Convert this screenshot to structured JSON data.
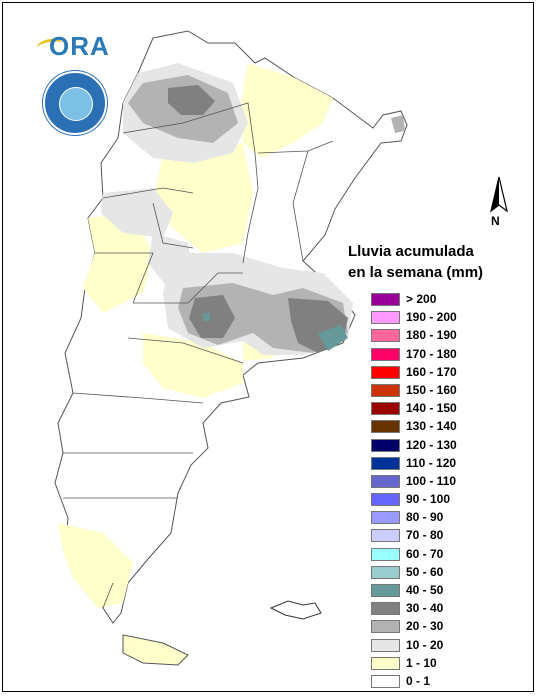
{
  "map": {
    "logo_text": "ORA",
    "seal_icon": "smn-seal-icon",
    "north_label": "N",
    "legend_title_line1": "Lluvia acumulada",
    "legend_title_line2": "en la semana (mm)",
    "legend": [
      {
        "label": "> 200",
        "color": "#990099"
      },
      {
        "label": "190 - 200",
        "color": "#ff99ff"
      },
      {
        "label": "180 - 190",
        "color": "#ff6699"
      },
      {
        "label": "170 - 180",
        "color": "#ff0066"
      },
      {
        "label": "160 - 170",
        "color": "#ff0000"
      },
      {
        "label": "150 - 160",
        "color": "#cc3300"
      },
      {
        "label": "140 - 150",
        "color": "#990000"
      },
      {
        "label": "130 - 140",
        "color": "#663300"
      },
      {
        "label": "120 - 130",
        "color": "#000066"
      },
      {
        "label": "110 - 120",
        "color": "#003399"
      },
      {
        "label": "100 - 110",
        "color": "#6666cc"
      },
      {
        "label": "90 - 100",
        "color": "#6666ff"
      },
      {
        "label": "80 - 90",
        "color": "#9999ff"
      },
      {
        "label": "70 - 80",
        "color": "#ccccff"
      },
      {
        "label": "60 - 70",
        "color": "#99ffff"
      },
      {
        "label": "50 - 60",
        "color": "#99cccc"
      },
      {
        "label": "40 - 50",
        "color": "#669999"
      },
      {
        "label": "30 - 40",
        "color": "#808080"
      },
      {
        "label": "20 - 30",
        "color": "#b3b3b3"
      },
      {
        "label": "10 - 20",
        "color": "#e6e6e6"
      },
      {
        "label": "1 - 10",
        "color": "#ffffcc"
      },
      {
        "label": "0 - 1",
        "color": "#ffffff"
      }
    ]
  }
}
